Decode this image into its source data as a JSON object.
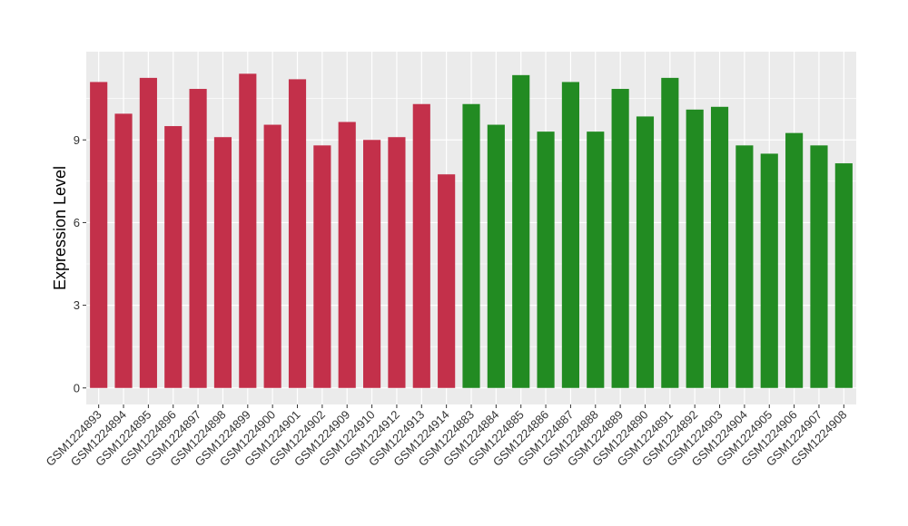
{
  "chart_data": {
    "type": "bar",
    "title": "",
    "xlabel": "",
    "ylabel": "Expression Level",
    "ylim": [
      -0.6,
      12.2
    ],
    "yticks": [
      0,
      3,
      6,
      9
    ],
    "grid": true,
    "panel_background": "#EBEBEB",
    "categories": [
      "GSM1224893",
      "GSM1224894",
      "GSM1224895",
      "GSM1224896",
      "GSM1224897",
      "GSM1224898",
      "GSM1224899",
      "GSM1224900",
      "GSM1224901",
      "GSM1224902",
      "GSM1224909",
      "GSM1224910",
      "GSM1224912",
      "GSM1224913",
      "GSM1224914",
      "GSM1224883",
      "GSM1224884",
      "GSM1224885",
      "GSM1224886",
      "GSM1224887",
      "GSM1224888",
      "GSM1224889",
      "GSM1224890",
      "GSM1224891",
      "GSM1224892",
      "GSM1224903",
      "GSM1224904",
      "GSM1224905",
      "GSM1224906",
      "GSM1224907",
      "GSM1224908"
    ],
    "values": [
      11.1,
      9.95,
      11.25,
      9.5,
      10.85,
      9.1,
      11.4,
      9.55,
      11.2,
      8.8,
      9.65,
      9.0,
      9.1,
      10.3,
      7.75,
      10.3,
      9.55,
      11.35,
      9.3,
      11.1,
      9.3,
      10.85,
      9.85,
      11.25,
      10.1,
      10.2,
      8.8,
      8.5,
      9.25,
      8.8,
      8.15
    ],
    "bar_colors": [
      "#C3304A",
      "#C3304A",
      "#C3304A",
      "#C3304A",
      "#C3304A",
      "#C3304A",
      "#C3304A",
      "#C3304A",
      "#C3304A",
      "#C3304A",
      "#C3304A",
      "#C3304A",
      "#C3304A",
      "#C3304A",
      "#C3304A",
      "#228B22",
      "#228B22",
      "#228B22",
      "#228B22",
      "#228B22",
      "#228B22",
      "#228B22",
      "#228B22",
      "#228B22",
      "#228B22",
      "#228B22",
      "#228B22",
      "#228B22",
      "#228B22",
      "#228B22",
      "#228B22"
    ]
  }
}
